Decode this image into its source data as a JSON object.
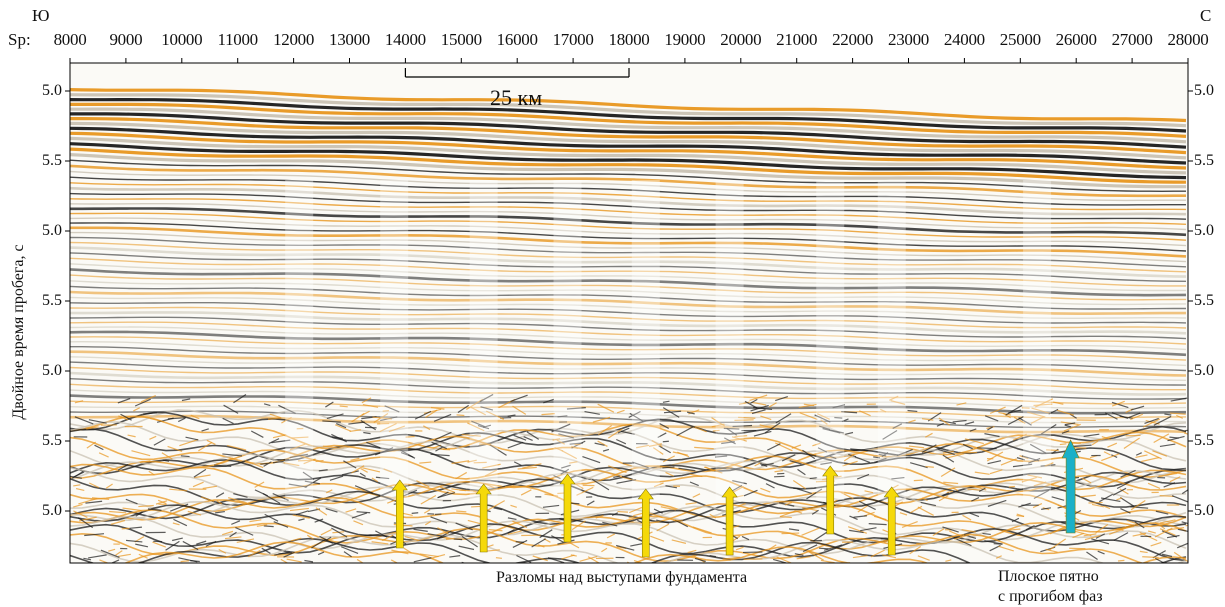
{
  "header": {
    "left_direction": "Ю",
    "right_direction": "С",
    "sp_label": "Sp:",
    "sp_ticks": [
      "8000",
      "9000",
      "10000",
      "11000",
      "12000",
      "13000",
      "14000",
      "15000",
      "16000",
      "17000",
      "18000",
      "19000",
      "20000",
      "21000",
      "22000",
      "23000",
      "24000",
      "25000",
      "26000",
      "27000",
      "28000"
    ]
  },
  "y_axis": {
    "label": "Двойное время пробега, с",
    "ticks": [
      "5.0",
      "5.5",
      "5.0",
      "5.5",
      "5.0",
      "5.5",
      "5.0"
    ]
  },
  "scale_bar": {
    "label": "25 км",
    "from_sp": 14000,
    "to_sp": 18000
  },
  "captions": {
    "faults": "Разломы над выступами фундамента",
    "flat_spot_line1": "Плоское пятно",
    "flat_spot_line2": "с прогибом фаз"
  },
  "arrows": {
    "yellow_sp": [
      13900,
      15400,
      16900,
      18300,
      19800,
      21600,
      22700
    ],
    "blue_sp": [
      25900
    ]
  },
  "colors": {
    "orange": "#e8961e",
    "black": "#1a1a1a",
    "yellow_arrow": "#f5d90a",
    "blue_arrow": "#1bb0c8"
  }
}
